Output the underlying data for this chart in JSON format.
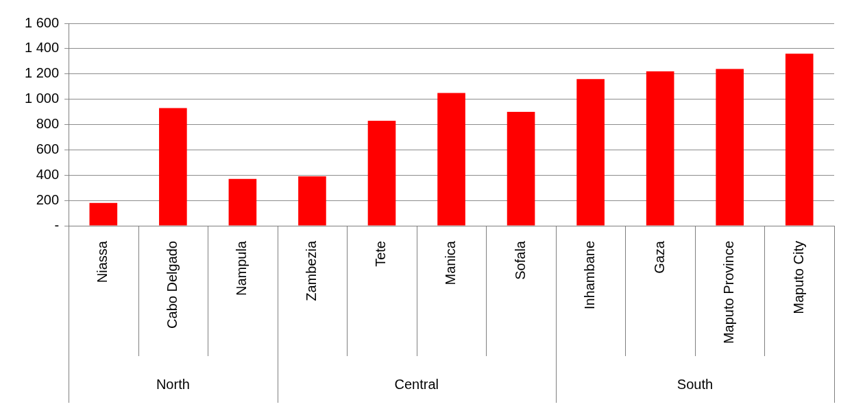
{
  "chart_data": {
    "type": "bar",
    "categories": [
      "Niassa",
      "Cabo Delgado",
      "Nampula",
      "Zambezia",
      "Tete",
      "Manica",
      "Sofala",
      "Inhambane",
      "Gaza",
      "Maputo Province",
      "Maputo City"
    ],
    "values": [
      180,
      930,
      370,
      390,
      830,
      1050,
      900,
      1160,
      1220,
      1240,
      1360
    ],
    "color": "#ff0000",
    "ylim": [
      0,
      1600
    ],
    "yticks": [
      {
        "value": 0,
        "label": "-"
      },
      {
        "value": 200,
        "label": "200"
      },
      {
        "value": 400,
        "label": "400"
      },
      {
        "value": 600,
        "label": "600"
      },
      {
        "value": 800,
        "label": "800"
      },
      {
        "value": 1000,
        "label": "1 000"
      },
      {
        "value": 1200,
        "label": "1 200"
      },
      {
        "value": 1400,
        "label": "1 400"
      },
      {
        "value": 1600,
        "label": "1 600"
      }
    ],
    "grid": "y",
    "annotations": [
      "North",
      "Central",
      "South"
    ]
  }
}
